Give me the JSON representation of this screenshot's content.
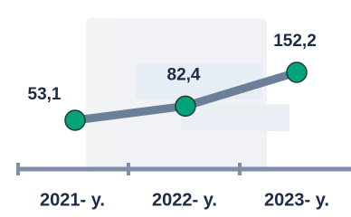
{
  "chart_data": {
    "type": "line",
    "categories": [
      "2021- y.",
      "2022- y.",
      "2023- y."
    ],
    "values": [
      53.1,
      82.4,
      152.2
    ],
    "value_labels": [
      "53,1",
      "82,4",
      "152,2"
    ],
    "color": "#6b7f99",
    "marker_color": "#00a37a"
  }
}
